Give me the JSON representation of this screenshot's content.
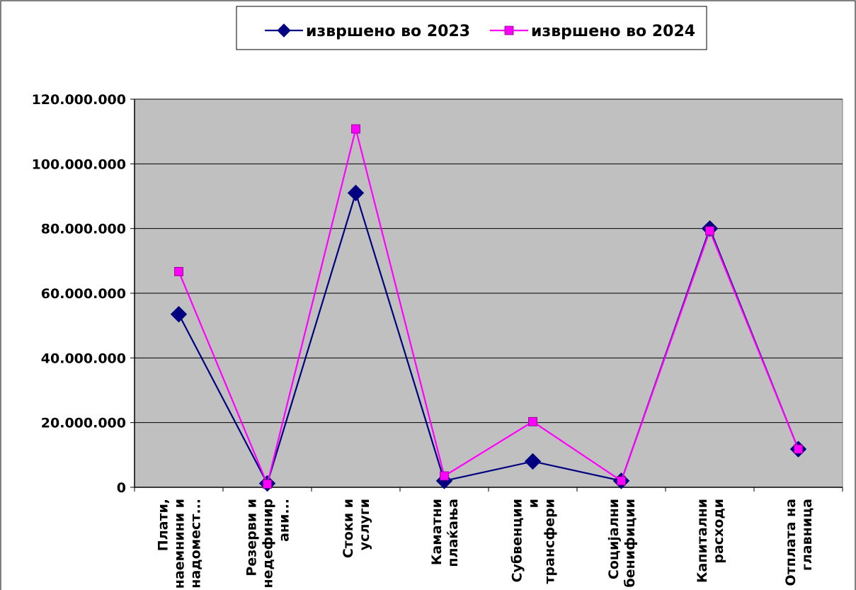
{
  "chart_data": {
    "type": "line",
    "categories": [
      [
        "Плати,",
        "наемнини и",
        "надомест..."
      ],
      [
        "Резерви и",
        "недефинир",
        "ани..."
      ],
      [
        "Стоки и",
        "услуги"
      ],
      [
        "Каматни",
        "плаќања"
      ],
      [
        "Субвенции",
        "и",
        "трансфери"
      ],
      [
        "Социјални",
        "бенифиции"
      ],
      [
        "Капитални",
        "расходи"
      ],
      [
        "Отплата на",
        "главница"
      ]
    ],
    "series": [
      {
        "name": "извршено во 2023",
        "color": "#000080",
        "marker": "diamond",
        "values": [
          53500000,
          1200000,
          91000000,
          2000000,
          8000000,
          2000000,
          80000000,
          11800000
        ]
      },
      {
        "name": "извршено во 2024",
        "color": "#ff00ff",
        "marker": "square",
        "values": [
          66700000,
          1000000,
          110800000,
          3500000,
          20300000,
          2000000,
          79300000,
          11800000
        ]
      }
    ],
    "ylim": [
      0,
      120000000
    ],
    "yticks": [
      0,
      20000000,
      40000000,
      60000000,
      80000000,
      100000000,
      120000000
    ],
    "ytick_labels": [
      "0",
      "20.000.000",
      "40.000.000",
      "60.000.000",
      "80.000.000",
      "100.000.000",
      "120.000.000"
    ],
    "grid": true,
    "plot_background": "#c0c0c0",
    "legend_position": "top"
  }
}
